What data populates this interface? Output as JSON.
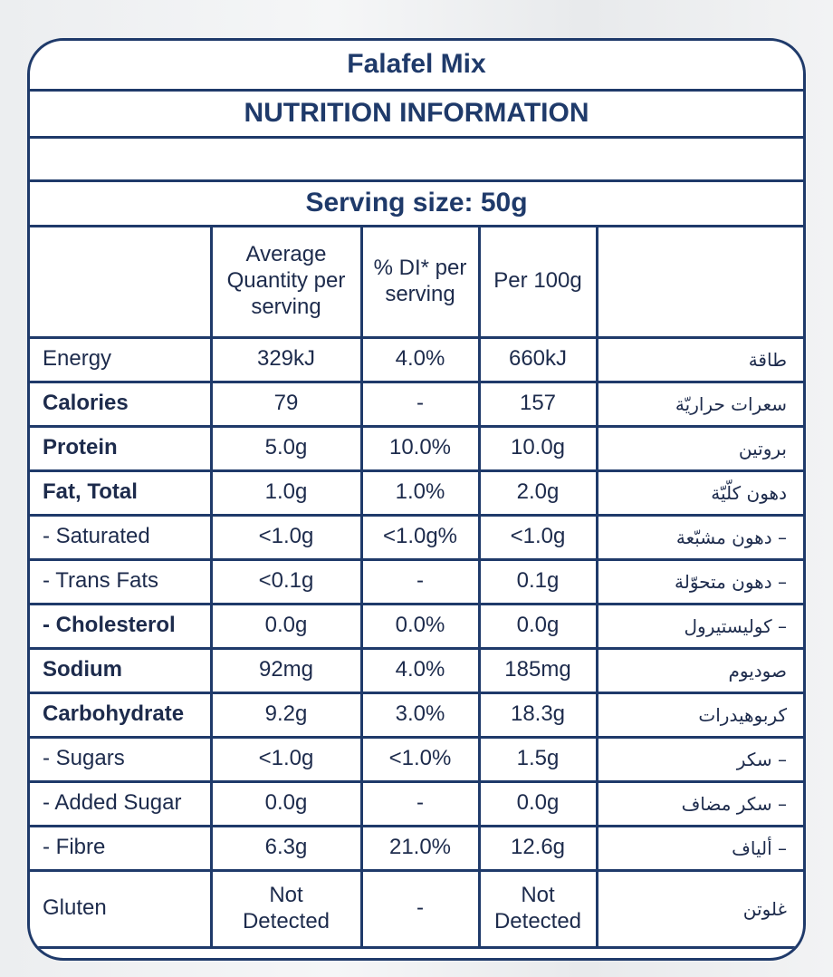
{
  "header": {
    "title": "Falafel Mix",
    "subtitle": "NUTRITION INFORMATION"
  },
  "serving_size": "Serving size: 50g",
  "table": {
    "columns": [
      "Average Quantity per serving",
      "% DI* per serving",
      "Per 100g"
    ],
    "rows": [
      {
        "label": "Energy",
        "values": [
          "329kJ",
          "4.0%",
          "660kJ"
        ],
        "arabic": "طاقة"
      },
      {
        "label": "Calories",
        "values": [
          "79",
          "-",
          "157"
        ],
        "arabic": "سعرات حراريّة"
      },
      {
        "label": "Protein",
        "values": [
          "5.0g",
          "10.0%",
          "10.0g"
        ],
        "arabic": "بروتين"
      },
      {
        "label": "Fat, Total",
        "values": [
          "1.0g",
          "1.0%",
          "2.0g"
        ],
        "arabic": "دهون كلّيّة"
      },
      {
        "label": "- Saturated",
        "values": [
          "<1.0g",
          "<1.0g%",
          "<1.0g"
        ],
        "arabic": "– دهون مشبّعة"
      },
      {
        "label": "- Trans Fats",
        "values": [
          "<0.1g",
          "-",
          "0.1g"
        ],
        "arabic": "– دهون متحوّلة"
      },
      {
        "label": "- Cholesterol",
        "values": [
          "0.0g",
          "0.0%",
          "0.0g"
        ],
        "arabic": "– كوليستيرول"
      },
      {
        "label": "Sodium",
        "values": [
          "92mg",
          "4.0%",
          "185mg"
        ],
        "arabic": "صوديوم"
      },
      {
        "label": "Carbohydrate",
        "values": [
          "9.2g",
          "3.0%",
          "18.3g"
        ],
        "arabic": "كربوهيدرات"
      },
      {
        "label": "- Sugars",
        "values": [
          "<1.0g",
          "<1.0%",
          "1.5g"
        ],
        "arabic": "– سكر"
      },
      {
        "label": "- Added Sugar",
        "values": [
          "0.0g",
          "-",
          "0.0g"
        ],
        "arabic": "– سكر مضاف"
      },
      {
        "label": "- Fibre",
        "values": [
          "6.3g",
          "21.0%",
          "12.6g"
        ],
        "arabic": "– ألياف"
      },
      {
        "label": "Gluten",
        "values": [
          "Not Detected",
          "-",
          "Not Detected"
        ],
        "arabic": "غلوتن"
      }
    ]
  }
}
